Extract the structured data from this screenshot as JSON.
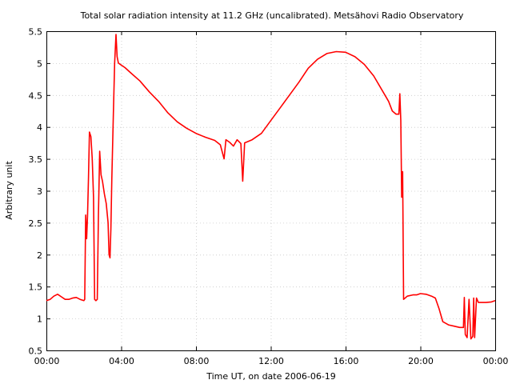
{
  "chart_data": {
    "type": "line",
    "title": "Total solar radiation intensity at 11.2 GHz (uncalibrated). Metsähovi Radio Observatory",
    "xlabel": "Time UT, on date 2006-06-19",
    "ylabel": "Arbitrary unit",
    "x_unit": "hours UT",
    "xlim": [
      0,
      24
    ],
    "ylim": [
      0.5,
      5.5
    ],
    "x_ticks": [
      {
        "value": 0,
        "label": "00:00"
      },
      {
        "value": 4,
        "label": "04:00"
      },
      {
        "value": 8,
        "label": "08:00"
      },
      {
        "value": 12,
        "label": "12:00"
      },
      {
        "value": 16,
        "label": "16:00"
      },
      {
        "value": 20,
        "label": "20:00"
      },
      {
        "value": 24,
        "label": "00:00"
      }
    ],
    "y_ticks": [
      {
        "value": 0.5,
        "label": "0.5"
      },
      {
        "value": 1,
        "label": "1"
      },
      {
        "value": 1.5,
        "label": "1.5"
      },
      {
        "value": 2,
        "label": "2"
      },
      {
        "value": 2.5,
        "label": "2.5"
      },
      {
        "value": 3,
        "label": "3"
      },
      {
        "value": 3.5,
        "label": "3.5"
      },
      {
        "value": 4,
        "label": "4"
      },
      {
        "value": 4.5,
        "label": "4.5"
      },
      {
        "value": 5,
        "label": "5"
      },
      {
        "value": 5.5,
        "label": "5.5"
      }
    ],
    "grid": true,
    "legend": "none",
    "series": [
      {
        "color": "#ff0000",
        "points": [
          [
            0.0,
            1.28
          ],
          [
            0.2,
            1.3
          ],
          [
            0.4,
            1.35
          ],
          [
            0.6,
            1.38
          ],
          [
            0.8,
            1.34
          ],
          [
            1.0,
            1.3
          ],
          [
            1.2,
            1.3
          ],
          [
            1.4,
            1.32
          ],
          [
            1.6,
            1.33
          ],
          [
            1.8,
            1.3
          ],
          [
            2.0,
            1.28
          ],
          [
            2.05,
            1.3
          ],
          [
            2.1,
            2.62
          ],
          [
            2.15,
            2.25
          ],
          [
            2.2,
            2.6
          ],
          [
            2.25,
            3.2
          ],
          [
            2.3,
            3.92
          ],
          [
            2.38,
            3.85
          ],
          [
            2.45,
            3.5
          ],
          [
            2.52,
            2.9
          ],
          [
            2.58,
            1.3
          ],
          [
            2.65,
            1.28
          ],
          [
            2.72,
            1.3
          ],
          [
            2.78,
            2.6
          ],
          [
            2.85,
            3.62
          ],
          [
            2.92,
            3.25
          ],
          [
            3.0,
            3.15
          ],
          [
            3.1,
            2.95
          ],
          [
            3.2,
            2.8
          ],
          [
            3.3,
            2.5
          ],
          [
            3.35,
            2.0
          ],
          [
            3.4,
            1.95
          ],
          [
            3.45,
            2.4
          ],
          [
            3.5,
            3.2
          ],
          [
            3.58,
            4.2
          ],
          [
            3.65,
            5.0
          ],
          [
            3.72,
            5.45
          ],
          [
            3.78,
            5.1
          ],
          [
            3.85,
            5.0
          ],
          [
            4.0,
            4.97
          ],
          [
            4.2,
            4.93
          ],
          [
            4.5,
            4.85
          ],
          [
            5.0,
            4.72
          ],
          [
            5.5,
            4.55
          ],
          [
            6.0,
            4.4
          ],
          [
            6.5,
            4.22
          ],
          [
            7.0,
            4.08
          ],
          [
            7.5,
            3.98
          ],
          [
            8.0,
            3.9
          ],
          [
            8.5,
            3.84
          ],
          [
            9.0,
            3.79
          ],
          [
            9.3,
            3.72
          ],
          [
            9.5,
            3.5
          ],
          [
            9.6,
            3.8
          ],
          [
            9.8,
            3.76
          ],
          [
            10.0,
            3.7
          ],
          [
            10.2,
            3.8
          ],
          [
            10.4,
            3.74
          ],
          [
            10.5,
            3.15
          ],
          [
            10.6,
            3.75
          ],
          [
            11.0,
            3.8
          ],
          [
            11.5,
            3.9
          ],
          [
            12.0,
            4.1
          ],
          [
            12.5,
            4.3
          ],
          [
            13.0,
            4.5
          ],
          [
            13.5,
            4.7
          ],
          [
            14.0,
            4.92
          ],
          [
            14.5,
            5.06
          ],
          [
            15.0,
            5.15
          ],
          [
            15.5,
            5.18
          ],
          [
            16.0,
            5.17
          ],
          [
            16.5,
            5.1
          ],
          [
            17.0,
            4.98
          ],
          [
            17.5,
            4.8
          ],
          [
            18.0,
            4.55
          ],
          [
            18.3,
            4.4
          ],
          [
            18.5,
            4.25
          ],
          [
            18.7,
            4.2
          ],
          [
            18.85,
            4.2
          ],
          [
            18.9,
            4.52
          ],
          [
            18.95,
            4.1
          ],
          [
            19.0,
            2.9
          ],
          [
            19.05,
            3.3
          ],
          [
            19.1,
            1.3
          ],
          [
            19.3,
            1.35
          ],
          [
            19.6,
            1.37
          ],
          [
            19.8,
            1.37
          ],
          [
            20.0,
            1.39
          ],
          [
            20.3,
            1.38
          ],
          [
            20.6,
            1.35
          ],
          [
            20.8,
            1.32
          ],
          [
            21.0,
            1.15
          ],
          [
            21.2,
            0.95
          ],
          [
            21.5,
            0.9
          ],
          [
            21.8,
            0.88
          ],
          [
            22.1,
            0.86
          ],
          [
            22.3,
            0.86
          ],
          [
            22.35,
            1.33
          ],
          [
            22.4,
            0.75
          ],
          [
            22.5,
            0.7
          ],
          [
            22.6,
            1.3
          ],
          [
            22.7,
            0.68
          ],
          [
            22.8,
            0.72
          ],
          [
            22.85,
            1.32
          ],
          [
            22.9,
            0.7
          ],
          [
            23.0,
            1.32
          ],
          [
            23.1,
            1.25
          ],
          [
            23.5,
            1.25
          ],
          [
            23.8,
            1.26
          ],
          [
            24.0,
            1.28
          ]
        ]
      }
    ]
  }
}
